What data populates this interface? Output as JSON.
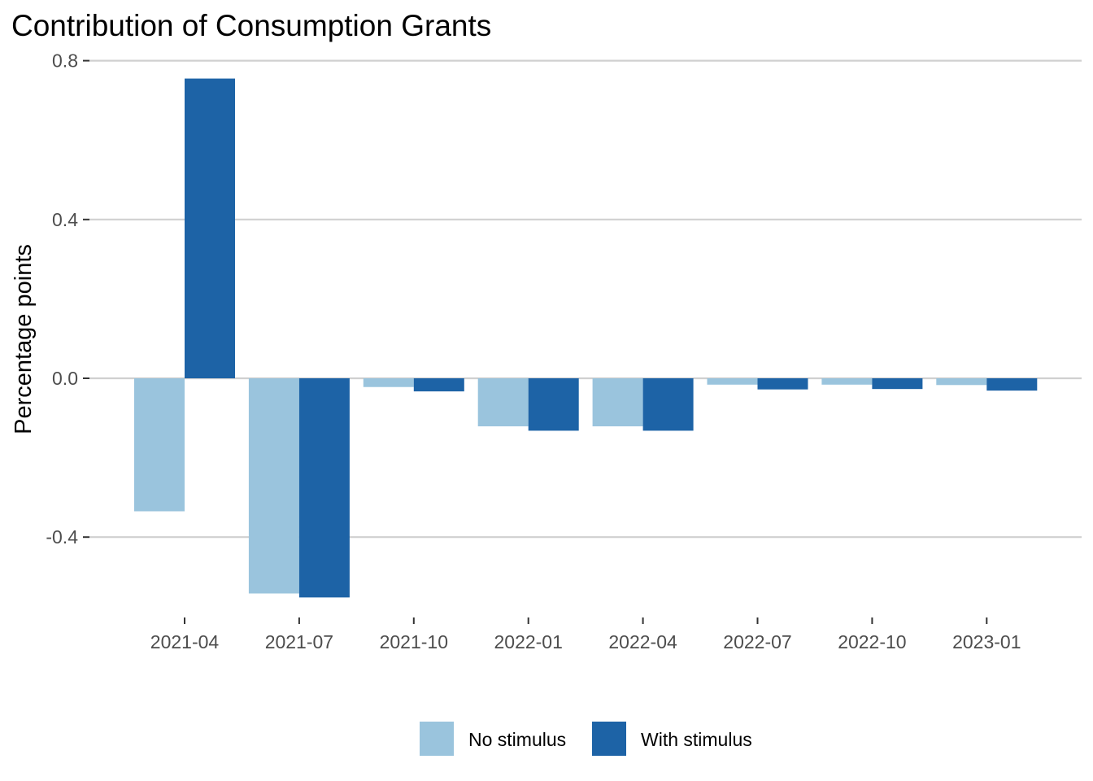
{
  "chart_data": {
    "type": "bar",
    "title": "Contribution of Consumption Grants",
    "xlabel": "",
    "ylabel": "Percentage points",
    "ylim": [
      -0.55,
      0.8
    ],
    "yticks": [
      -0.4,
      0.0,
      0.4,
      0.8
    ],
    "ytick_labels": [
      "-0.4",
      "0.0",
      "0.4",
      "0.8"
    ],
    "categories": [
      "2021-04",
      "2021-07",
      "2021-10",
      "2022-01",
      "2022-04",
      "2022-07",
      "2022-10",
      "2023-01"
    ],
    "series": [
      {
        "name": "No stimulus",
        "color": "#9ac4dd",
        "values": [
          -0.335,
          -0.542,
          -0.022,
          -0.121,
          -0.121,
          -0.016,
          -0.016,
          -0.017
        ]
      },
      {
        "name": "With stimulus",
        "color": "#1d63a6",
        "values": [
          0.755,
          -0.552,
          -0.033,
          -0.132,
          -0.132,
          -0.028,
          -0.027,
          -0.031
        ]
      }
    ],
    "grid": true,
    "legend_position": "bottom"
  }
}
